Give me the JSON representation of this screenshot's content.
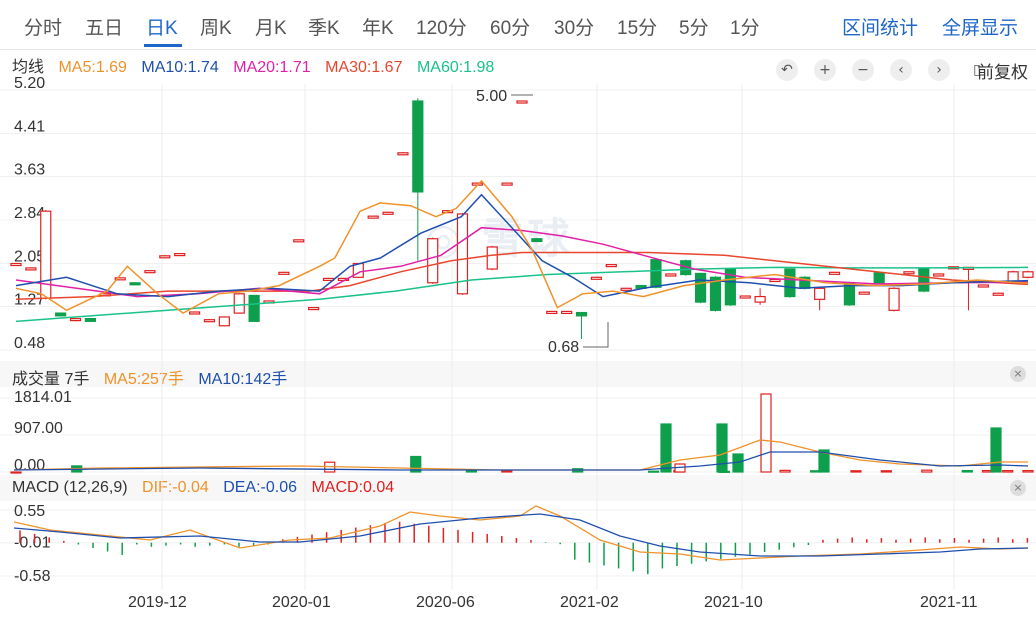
{
  "tabs": {
    "items": [
      "分时",
      "五日",
      "日K",
      "周K",
      "月K",
      "季K",
      "年K",
      "120分",
      "60分",
      "30分",
      "15分",
      "5分",
      "1分"
    ],
    "active_index": 2,
    "interval_stats": "区间统计",
    "fullscreen": "全屏显示"
  },
  "price_legend": {
    "label": "均线",
    "ma5": "MA5:1.69",
    "ma10": "MA10:1.74",
    "ma20": "MA20:1.71",
    "ma30": "MA30:1.67",
    "ma60": "MA60:1.98"
  },
  "toolbar": {
    "icons": [
      "reset-icon",
      "zoom-in-icon",
      "zoom-out-icon",
      "left-icon",
      "right-icon",
      "candle-icon"
    ],
    "fuquan_label": "前复权"
  },
  "volume_legend": {
    "label": "成交量 7手",
    "ma5": "MA5:257手",
    "ma10": "MA10:142手"
  },
  "macd_legend": {
    "label": "MACD (12,26,9)",
    "dif": "DIF:-0.04",
    "dea": "DEA:-0.06",
    "macd": "MACD:0.04"
  },
  "watermark": "雪球",
  "colors": {
    "up": "#e02020",
    "down": "#0e9f4c",
    "ma5": "#f0922a",
    "ma10": "#1e4fae",
    "ma20": "#e021a8",
    "ma30": "#e8462e",
    "ma60": "#19c28b",
    "accent": "#1e66c8"
  },
  "chart_data": [
    {
      "type": "candlestick",
      "name": "price",
      "yticks": [
        "5.20",
        "4.41",
        "3.63",
        "2.84",
        "2.05",
        "1.27",
        "0.48"
      ],
      "ylim": [
        0.48,
        5.2
      ],
      "x_labels": [
        "2019-12",
        "2020-01",
        "2020-06",
        "2021-02",
        "2021-10",
        "2021-11"
      ],
      "annotations": {
        "high": "5.00",
        "low": "0.68"
      },
      "candles": [
        [
          2.05,
          2.05,
          2.06,
          2.04
        ],
        [
          1.96,
          1.97,
          1.98,
          1.95
        ],
        [
          1.42,
          3.0,
          3.02,
          1.4
        ],
        [
          1.15,
          1.1,
          1.16,
          1.09
        ],
        [
          1.02,
          1.05,
          1.06,
          1.0
        ],
        [
          1.05,
          1.0,
          1.06,
          0.99
        ],
        [
          1.5,
          1.5,
          1.51,
          1.49
        ],
        [
          1.79,
          1.79,
          1.8,
          1.78
        ],
        [
          1.7,
          1.69,
          1.71,
          1.68
        ],
        [
          1.91,
          1.92,
          1.93,
          1.9
        ],
        [
          2.18,
          2.19,
          2.2,
          2.17
        ],
        [
          2.22,
          2.23,
          2.24,
          2.21
        ],
        [
          1.16,
          1.17,
          1.18,
          1.15
        ],
        [
          1.02,
          1.03,
          1.04,
          1.01
        ],
        [
          0.92,
          1.08,
          1.09,
          0.91
        ],
        [
          1.15,
          1.5,
          1.51,
          1.14
        ],
        [
          1.47,
          1.0,
          1.48,
          0.99
        ],
        [
          1.36,
          1.37,
          1.38,
          1.35
        ],
        [
          1.88,
          1.89,
          1.9,
          1.87
        ],
        [
          2.47,
          2.48,
          2.49,
          2.46
        ],
        [
          1.25,
          1.25,
          1.26,
          1.24
        ],
        [
          1.78,
          1.78,
          1.79,
          1.77
        ],
        [
          1.77,
          1.78,
          1.79,
          1.76
        ],
        [
          1.8,
          2.05,
          2.06,
          1.79
        ],
        [
          2.9,
          2.91,
          2.92,
          2.89
        ],
        [
          2.97,
          2.98,
          2.99,
          2.96
        ],
        [
          4.05,
          4.06,
          4.07,
          4.04
        ],
        [
          5.0,
          3.35,
          5.05,
          2.1
        ],
        [
          1.7,
          2.5,
          2.52,
          1.68
        ],
        [
          3.0,
          3.01,
          3.02,
          2.99
        ],
        [
          1.5,
          2.95,
          2.97,
          1.48
        ],
        [
          3.5,
          3.51,
          3.52,
          3.49
        ],
        [
          1.95,
          2.35,
          2.37,
          1.93
        ],
        [
          3.5,
          3.51,
          3.52,
          3.49
        ],
        [
          5.0,
          5.0,
          5.01,
          4.99
        ],
        [
          2.5,
          2.45,
          2.51,
          2.44
        ],
        [
          1.18,
          1.18,
          1.19,
          1.17
        ],
        [
          1.18,
          1.18,
          1.19,
          1.17
        ],
        [
          1.16,
          1.1,
          1.17,
          0.68
        ],
        [
          1.8,
          1.8,
          1.81,
          1.79
        ],
        [
          2.03,
          2.03,
          2.04,
          2.02
        ],
        [
          1.6,
          1.6,
          1.61,
          1.59
        ],
        [
          1.65,
          1.6,
          1.66,
          1.59
        ],
        [
          2.12,
          1.62,
          2.14,
          1.6
        ],
        [
          1.85,
          1.86,
          1.87,
          1.84
        ],
        [
          2.1,
          1.85,
          2.12,
          1.83
        ],
        [
          1.87,
          1.35,
          1.88,
          1.33
        ],
        [
          1.8,
          1.2,
          1.82,
          1.18
        ],
        [
          1.95,
          1.3,
          1.96,
          1.28
        ],
        [
          1.45,
          1.46,
          1.47,
          1.44
        ],
        [
          1.35,
          1.45,
          1.6,
          1.3
        ],
        [
          1.75,
          1.76,
          1.77,
          1.74
        ],
        [
          1.95,
          1.45,
          1.96,
          1.43
        ],
        [
          1.8,
          1.6,
          1.82,
          1.58
        ],
        [
          1.4,
          1.6,
          1.62,
          1.2
        ],
        [
          1.88,
          1.89,
          1.9,
          1.87
        ],
        [
          1.7,
          1.3,
          1.72,
          1.28
        ],
        [
          1.52,
          1.53,
          1.54,
          1.51
        ],
        [
          1.88,
          1.7,
          1.9,
          1.68
        ],
        [
          1.2,
          1.6,
          1.62,
          1.18
        ],
        [
          1.89,
          1.9,
          1.91,
          1.88
        ],
        [
          1.95,
          1.55,
          1.96,
          1.53
        ],
        [
          1.85,
          1.86,
          1.87,
          1.84
        ],
        [
          1.98,
          1.99,
          2.0,
          1.97
        ],
        [
          1.97,
          1.98,
          1.99,
          1.2
        ],
        [
          1.65,
          1.66,
          1.67,
          1.64
        ],
        [
          1.5,
          1.51,
          1.52,
          1.49
        ],
        [
          1.7,
          1.9,
          1.92,
          1.68
        ],
        [
          1.8,
          1.9,
          1.92,
          1.78
        ]
      ],
      "ma": {
        "ma5": [
          [
            0,
            1.6
          ],
          [
            5,
            1.5
          ],
          [
            10,
            1.2
          ],
          [
            18,
            1.55
          ],
          [
            22,
            2.0
          ],
          [
            28,
            1.5
          ],
          [
            33,
            1.15
          ],
          [
            40,
            1.5
          ],
          [
            46,
            1.55
          ],
          [
            52,
            1.65
          ],
          [
            60,
            2.0
          ],
          [
            63,
            2.15
          ],
          [
            68,
            3.0
          ],
          [
            72,
            3.15
          ],
          [
            78,
            3.1
          ],
          [
            83,
            2.9
          ],
          [
            87,
            3.05
          ],
          [
            92,
            3.55
          ],
          [
            98,
            2.9
          ],
          [
            102,
            2.3
          ],
          [
            107,
            1.25
          ],
          [
            112,
            1.5
          ],
          [
            118,
            1.55
          ],
          [
            124,
            1.45
          ],
          [
            132,
            1.65
          ],
          [
            140,
            1.75
          ],
          [
            150,
            1.85
          ],
          [
            160,
            1.7
          ],
          [
            170,
            1.65
          ],
          [
            180,
            1.68
          ],
          [
            190,
            1.75
          ],
          [
            200,
            1.69
          ]
        ],
        "ma10": [
          [
            0,
            1.65
          ],
          [
            10,
            1.8
          ],
          [
            20,
            1.5
          ],
          [
            30,
            1.45
          ],
          [
            40,
            1.55
          ],
          [
            50,
            1.6
          ],
          [
            60,
            1.55
          ],
          [
            66,
            2.0
          ],
          [
            72,
            2.15
          ],
          [
            80,
            2.6
          ],
          [
            88,
            2.9
          ],
          [
            92,
            3.3
          ],
          [
            98,
            2.7
          ],
          [
            104,
            2.1
          ],
          [
            110,
            1.8
          ],
          [
            116,
            1.45
          ],
          [
            124,
            1.6
          ],
          [
            135,
            1.75
          ],
          [
            145,
            1.7
          ],
          [
            155,
            1.6
          ],
          [
            165,
            1.65
          ],
          [
            175,
            1.65
          ],
          [
            185,
            1.7
          ],
          [
            200,
            1.74
          ]
        ],
        "ma20": [
          [
            0,
            1.75
          ],
          [
            12,
            1.6
          ],
          [
            24,
            1.45
          ],
          [
            36,
            1.5
          ],
          [
            48,
            1.6
          ],
          [
            60,
            1.5
          ],
          [
            68,
            1.9
          ],
          [
            76,
            2.0
          ],
          [
            84,
            2.2
          ],
          [
            92,
            2.7
          ],
          [
            100,
            2.65
          ],
          [
            108,
            2.55
          ],
          [
            116,
            2.4
          ],
          [
            124,
            2.2
          ],
          [
            134,
            1.95
          ],
          [
            144,
            1.8
          ],
          [
            155,
            1.75
          ],
          [
            170,
            1.68
          ],
          [
            185,
            1.7
          ],
          [
            200,
            1.71
          ]
        ],
        "ma30": [
          [
            0,
            1.4
          ],
          [
            15,
            1.45
          ],
          [
            30,
            1.55
          ],
          [
            45,
            1.55
          ],
          [
            58,
            1.55
          ],
          [
            66,
            1.65
          ],
          [
            76,
            1.9
          ],
          [
            86,
            2.1
          ],
          [
            94,
            2.2
          ],
          [
            100,
            2.25
          ],
          [
            110,
            2.25
          ],
          [
            125,
            2.25
          ],
          [
            140,
            2.2
          ],
          [
            155,
            2.05
          ],
          [
            170,
            1.9
          ],
          [
            185,
            1.75
          ],
          [
            200,
            1.67
          ]
        ],
        "ma60": [
          [
            0,
            1.0
          ],
          [
            15,
            1.1
          ],
          [
            30,
            1.2
          ],
          [
            45,
            1.3
          ],
          [
            60,
            1.4
          ],
          [
            75,
            1.55
          ],
          [
            90,
            1.75
          ],
          [
            105,
            1.85
          ],
          [
            120,
            1.9
          ],
          [
            135,
            1.95
          ],
          [
            150,
            1.98
          ],
          [
            165,
            1.97
          ],
          [
            180,
            1.97
          ],
          [
            200,
            1.98
          ]
        ]
      }
    },
    {
      "type": "bar",
      "name": "volume",
      "yticks": [
        "1814.01",
        "907.00",
        "0.00"
      ],
      "ylim": [
        0,
        1814.01
      ],
      "bars": [
        [
          0,
          0,
          "u"
        ],
        [
          12,
          150,
          "d"
        ],
        [
          62,
          240,
          "u"
        ],
        [
          79,
          380,
          "d"
        ],
        [
          90,
          30,
          "d"
        ],
        [
          97,
          30,
          "u"
        ],
        [
          111,
          80,
          "d"
        ],
        [
          126,
          20,
          "d"
        ],
        [
          131,
          40,
          "u"
        ],
        [
          140,
          15,
          "d"
        ],
        [
          152,
          40,
          "u"
        ],
        [
          158,
          30,
          "d"
        ],
        [
          166,
          30,
          "u"
        ],
        [
          172,
          30,
          "u"
        ],
        [
          180,
          45,
          "u"
        ],
        [
          188,
          35,
          "d"
        ],
        [
          192,
          35,
          "u"
        ],
        [
          196,
          35,
          "u"
        ],
        [
          200,
          35,
          "u"
        ]
      ]
    },
    {
      "type": "bar",
      "name": "macd",
      "yticks": [
        "0.55",
        "-0.01",
        "-0.58"
      ],
      "ylim": [
        -0.58,
        0.55
      ]
    }
  ]
}
